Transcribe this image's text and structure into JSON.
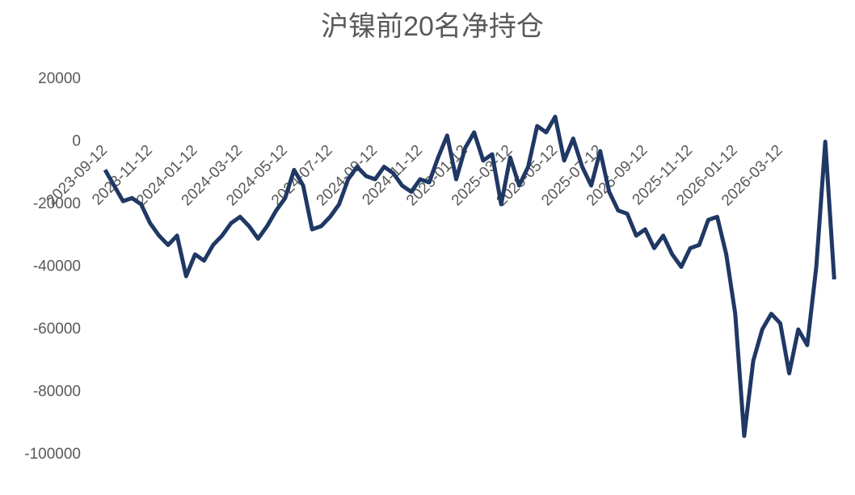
{
  "chart_data": {
    "type": "line",
    "title": "沪镍前20名净持仓",
    "categories": [
      "2023-09-12",
      null,
      null,
      null,
      null,
      "2023-11-12",
      null,
      null,
      null,
      null,
      "2024-01-12",
      null,
      null,
      null,
      null,
      "2024-03-12",
      null,
      null,
      null,
      null,
      "2024-05-12",
      null,
      null,
      null,
      null,
      "2024-07-12",
      null,
      null,
      null,
      null,
      "2024-09-12",
      null,
      null,
      null,
      null,
      "2024-11-12",
      null,
      null,
      null,
      null,
      "2025-01-12",
      null,
      null,
      null,
      null,
      "2025-03-12",
      null,
      null,
      null,
      null,
      "2025-05-12",
      null,
      null,
      null,
      null,
      "2025-07-12",
      null,
      null,
      null,
      null,
      "2025-09-12",
      null,
      null,
      null,
      null,
      "2025-11-12",
      null,
      null,
      null,
      null,
      "2026-01-12",
      null,
      null,
      null,
      null,
      "2026-03-12",
      null,
      null,
      null,
      null,
      null,
      null
    ],
    "values": [
      -9000,
      -14000,
      -19000,
      -18000,
      -20000,
      -26000,
      -30000,
      -33000,
      -30000,
      -43000,
      -36000,
      -38000,
      -33000,
      -30000,
      -26000,
      -24000,
      -27000,
      -31000,
      -27000,
      -22000,
      -18000,
      -9000,
      -14000,
      -28000,
      -27000,
      -24000,
      -20000,
      -12000,
      -8000,
      -11000,
      -12000,
      -8000,
      -10000,
      -14000,
      -16000,
      -12000,
      -13000,
      -5000,
      2000,
      -12000,
      -2000,
      3000,
      -6000,
      -4000,
      -20000,
      -5000,
      -14000,
      -8000,
      5000,
      3000,
      8000,
      -6000,
      1000,
      -8000,
      -14000,
      -3000,
      -16000,
      -22000,
      -23000,
      -30000,
      -28000,
      -34000,
      -30000,
      -36000,
      -40000,
      -34000,
      -33000,
      -25000,
      -24000,
      -36000,
      -55000,
      -94000,
      -70000,
      -60000,
      -55000,
      -58000,
      -74000,
      -60000,
      -65000,
      -40000,
      0,
      -44000
    ],
    "color": "#1f3864",
    "ylim": [
      -100000,
      20000
    ],
    "yticks": [
      20000,
      0,
      -20000,
      -40000,
      -60000,
      -80000,
      -100000
    ]
  }
}
